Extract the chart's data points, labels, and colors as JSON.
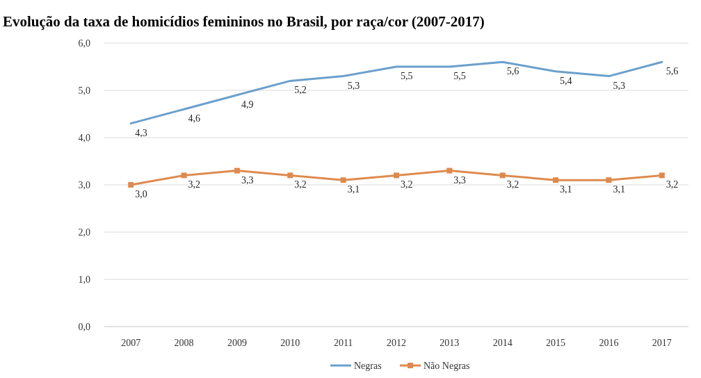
{
  "chart_data": {
    "type": "line",
    "title": "Evolução da taxa de homicídios femininos no Brasil, por raça/cor (2007-2017)",
    "categories": [
      "2007",
      "2008",
      "2009",
      "2010",
      "2011",
      "2012",
      "2013",
      "2014",
      "2015",
      "2016",
      "2017"
    ],
    "series": [
      {
        "name": "Negras",
        "color": "#6b9fcc",
        "marker": "none",
        "values": [
          4.3,
          4.6,
          4.9,
          5.2,
          5.3,
          5.5,
          5.5,
          5.6,
          5.4,
          5.3,
          5.6
        ],
        "value_labels": [
          "4,3",
          "4,6",
          "4,9",
          "5,2",
          "5,3",
          "5,5",
          "5,5",
          "5,6",
          "5,4",
          "5,3",
          "5,6"
        ]
      },
      {
        "name": "Não Negras",
        "color": "#de8a4e",
        "marker": "square",
        "values": [
          3.0,
          3.2,
          3.3,
          3.2,
          3.1,
          3.2,
          3.3,
          3.2,
          3.1,
          3.1,
          3.2
        ],
        "value_labels": [
          "3,0",
          "3,2",
          "3,3",
          "3,2",
          "3,1",
          "3,2",
          "3,3",
          "3,2",
          "3,1",
          "3,1",
          "3,2"
        ]
      }
    ],
    "ylim": [
      0,
      6
    ],
    "yticks": [
      {
        "value": 0,
        "label": "0,0"
      },
      {
        "value": 1,
        "label": "1,0"
      },
      {
        "value": 2,
        "label": "2,0"
      },
      {
        "value": 3,
        "label": "3,0"
      },
      {
        "value": 4,
        "label": "4,0"
      },
      {
        "value": 5,
        "label": "5,0"
      },
      {
        "value": 6,
        "label": "6,0"
      }
    ],
    "grid": "y",
    "legend": "bottom",
    "line_style": "solid"
  }
}
